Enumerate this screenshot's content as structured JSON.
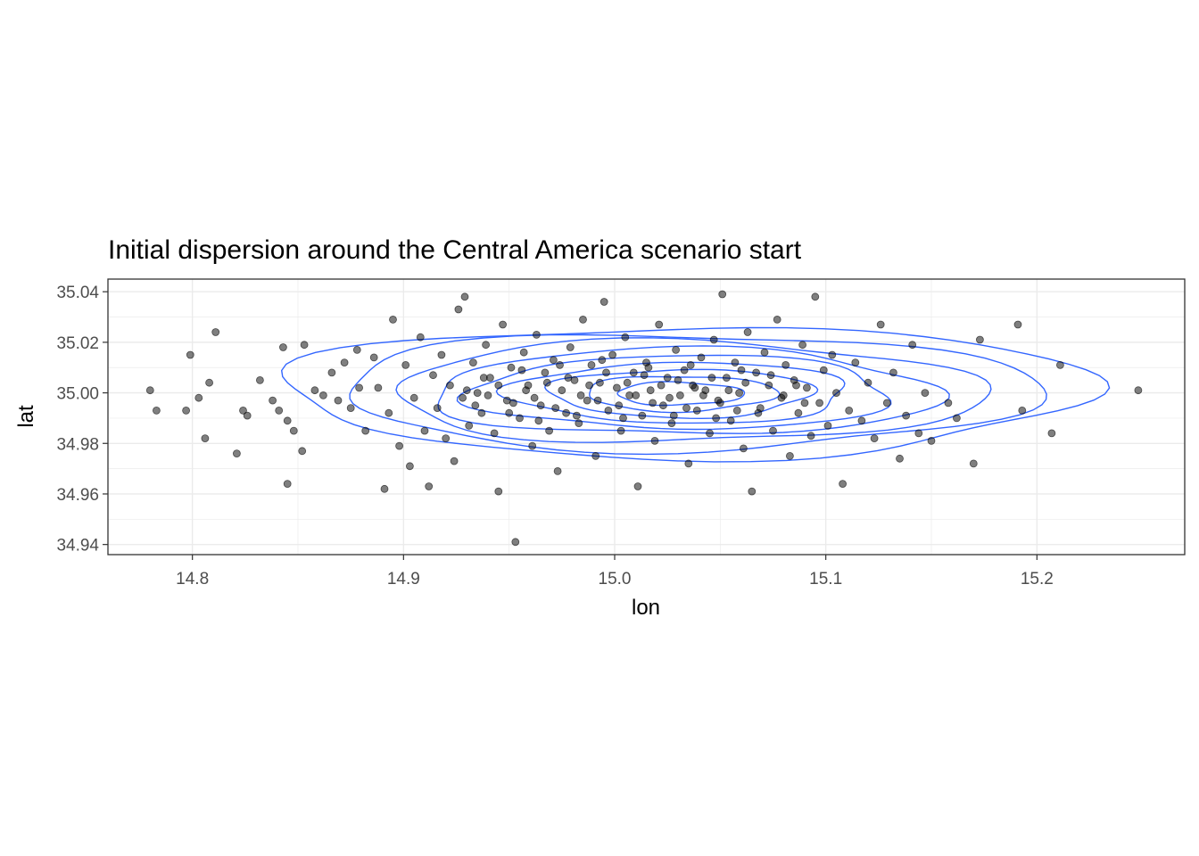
{
  "chart_data": {
    "type": "scatter",
    "title": "Initial dispersion around the Central America scenario start",
    "xlabel": "lon",
    "ylabel": "lat",
    "xlim": [
      14.76,
      15.27
    ],
    "ylim": [
      34.936,
      35.045
    ],
    "x_ticks": [
      14.8,
      14.9,
      15.0,
      15.1,
      15.2
    ],
    "x_tick_labels": [
      "14.8",
      "14.9",
      "15.0",
      "15.1",
      "15.2"
    ],
    "y_ticks": [
      34.94,
      34.96,
      34.98,
      35.0,
      35.02,
      35.04
    ],
    "y_tick_labels": [
      "34.94",
      "34.96",
      "34.98",
      "35.00",
      "35.02",
      "35.04"
    ],
    "grid": true,
    "colors": {
      "points": "#000000",
      "contours": "#3366ff",
      "grid": "#ebebeb",
      "panel_border": "#333333"
    },
    "density_contours": {
      "center": [
        15.0,
        35.0
      ],
      "levels": [
        {
          "rx": 0.19,
          "ry": 0.026
        },
        {
          "rx": 0.165,
          "ry": 0.023
        },
        {
          "rx": 0.14,
          "ry": 0.02
        },
        {
          "rx": 0.12,
          "ry": 0.017
        },
        {
          "rx": 0.1,
          "ry": 0.0145
        },
        {
          "rx": 0.08,
          "ry": 0.012
        },
        {
          "rx": 0.062,
          "ry": 0.0095
        },
        {
          "rx": 0.045,
          "ry": 0.007
        },
        {
          "rx": 0.03,
          "ry": 0.0045
        }
      ]
    },
    "points": [
      [
        14.78,
        35.001
      ],
      [
        14.783,
        34.993
      ],
      [
        14.797,
        34.993
      ],
      [
        14.799,
        35.015
      ],
      [
        14.803,
        34.998
      ],
      [
        14.806,
        34.982
      ],
      [
        14.808,
        35.004
      ],
      [
        14.811,
        35.024
      ],
      [
        14.821,
        34.976
      ],
      [
        14.824,
        34.993
      ],
      [
        14.826,
        34.991
      ],
      [
        14.832,
        35.005
      ],
      [
        14.838,
        34.997
      ],
      [
        14.841,
        34.993
      ],
      [
        14.843,
        35.018
      ],
      [
        14.845,
        34.964
      ],
      [
        14.845,
        34.989
      ],
      [
        14.848,
        34.985
      ],
      [
        14.853,
        35.019
      ],
      [
        14.852,
        34.977
      ],
      [
        14.858,
        35.001
      ],
      [
        14.862,
        34.999
      ],
      [
        14.866,
        35.008
      ],
      [
        14.869,
        34.997
      ],
      [
        14.872,
        35.012
      ],
      [
        14.875,
        34.994
      ],
      [
        14.878,
        35.017
      ],
      [
        14.879,
        35.002
      ],
      [
        14.882,
        34.985
      ],
      [
        14.886,
        35.014
      ],
      [
        14.888,
        35.002
      ],
      [
        14.891,
        34.962
      ],
      [
        14.893,
        34.992
      ],
      [
        14.895,
        35.029
      ],
      [
        14.898,
        34.979
      ],
      [
        14.901,
        35.011
      ],
      [
        14.903,
        34.971
      ],
      [
        14.905,
        34.998
      ],
      [
        14.908,
        35.022
      ],
      [
        14.91,
        34.985
      ],
      [
        14.912,
        34.963
      ],
      [
        14.914,
        35.007
      ],
      [
        14.916,
        34.994
      ],
      [
        14.918,
        35.015
      ],
      [
        14.92,
        34.982
      ],
      [
        14.922,
        35.003
      ],
      [
        14.924,
        34.973
      ],
      [
        14.926,
        35.033
      ],
      [
        14.928,
        34.998
      ],
      [
        14.929,
        35.038
      ],
      [
        14.931,
        34.987
      ],
      [
        14.933,
        35.012
      ],
      [
        14.935,
        35.0
      ],
      [
        14.937,
        34.992
      ],
      [
        14.939,
        35.019
      ],
      [
        14.941,
        35.006
      ],
      [
        14.943,
        34.984
      ],
      [
        14.945,
        34.961
      ],
      [
        14.947,
        35.027
      ],
      [
        14.949,
        34.997
      ],
      [
        14.951,
        35.01
      ],
      [
        14.953,
        34.941
      ],
      [
        14.955,
        34.99
      ],
      [
        14.957,
        35.016
      ],
      [
        14.959,
        35.003
      ],
      [
        14.961,
        34.979
      ],
      [
        14.963,
        35.023
      ],
      [
        14.965,
        34.995
      ],
      [
        14.967,
        35.008
      ],
      [
        14.969,
        34.985
      ],
      [
        14.971,
        35.013
      ],
      [
        14.973,
        34.969
      ],
      [
        14.975,
        35.001
      ],
      [
        14.977,
        34.992
      ],
      [
        14.979,
        35.018
      ],
      [
        14.981,
        35.005
      ],
      [
        14.983,
        34.988
      ],
      [
        14.985,
        35.029
      ],
      [
        14.987,
        34.997
      ],
      [
        14.989,
        35.011
      ],
      [
        14.991,
        34.975
      ],
      [
        14.993,
        35.004
      ],
      [
        14.995,
        35.036
      ],
      [
        14.997,
        34.993
      ],
      [
        14.999,
        35.015
      ],
      [
        15.001,
        35.002
      ],
      [
        15.003,
        34.985
      ],
      [
        15.005,
        35.022
      ],
      [
        15.007,
        34.999
      ],
      [
        15.009,
        35.008
      ],
      [
        15.011,
        34.963
      ],
      [
        15.013,
        34.991
      ],
      [
        15.015,
        35.012
      ],
      [
        15.017,
        35.001
      ],
      [
        15.019,
        34.981
      ],
      [
        15.021,
        35.027
      ],
      [
        15.023,
        34.995
      ],
      [
        15.025,
        35.006
      ],
      [
        15.027,
        34.988
      ],
      [
        15.029,
        35.017
      ],
      [
        15.031,
        34.999
      ],
      [
        15.033,
        35.009
      ],
      [
        15.035,
        34.972
      ],
      [
        15.037,
        35.003
      ],
      [
        15.039,
        34.993
      ],
      [
        15.041,
        35.014
      ],
      [
        15.043,
        35.001
      ],
      [
        15.045,
        34.984
      ],
      [
        15.047,
        35.021
      ],
      [
        15.049,
        34.997
      ],
      [
        15.051,
        35.039
      ],
      [
        15.053,
        35.006
      ],
      [
        15.055,
        34.989
      ],
      [
        15.057,
        35.012
      ],
      [
        15.059,
        35.0
      ],
      [
        15.061,
        34.978
      ],
      [
        15.063,
        35.024
      ],
      [
        15.065,
        34.961
      ],
      [
        15.067,
        35.008
      ],
      [
        15.069,
        34.994
      ],
      [
        15.071,
        35.016
      ],
      [
        15.073,
        35.003
      ],
      [
        15.075,
        34.985
      ],
      [
        15.077,
        35.029
      ],
      [
        15.079,
        34.998
      ],
      [
        15.081,
        35.011
      ],
      [
        15.083,
        34.975
      ],
      [
        15.085,
        35.005
      ],
      [
        15.087,
        34.992
      ],
      [
        15.089,
        35.019
      ],
      [
        15.091,
        35.002
      ],
      [
        15.093,
        34.983
      ],
      [
        15.095,
        35.038
      ],
      [
        15.097,
        34.996
      ],
      [
        15.099,
        35.009
      ],
      [
        15.101,
        34.987
      ],
      [
        15.103,
        35.015
      ],
      [
        15.105,
        35.0
      ],
      [
        15.108,
        34.964
      ],
      [
        15.111,
        34.993
      ],
      [
        15.114,
        35.012
      ],
      [
        15.117,
        34.989
      ],
      [
        15.12,
        35.004
      ],
      [
        15.123,
        34.982
      ],
      [
        15.126,
        35.027
      ],
      [
        15.129,
        34.996
      ],
      [
        15.132,
        35.008
      ],
      [
        15.135,
        34.974
      ],
      [
        15.138,
        34.991
      ],
      [
        15.141,
        35.019
      ],
      [
        15.144,
        34.984
      ],
      [
        15.147,
        35.0
      ],
      [
        15.15,
        34.981
      ],
      [
        15.158,
        34.996
      ],
      [
        15.162,
        34.99
      ],
      [
        15.17,
        34.972
      ],
      [
        15.173,
        35.021
      ],
      [
        15.191,
        35.027
      ],
      [
        15.193,
        34.993
      ],
      [
        15.207,
        34.984
      ],
      [
        15.211,
        35.011
      ],
      [
        15.248,
        35.001
      ],
      [
        14.94,
        34.999
      ],
      [
        14.945,
        35.003
      ],
      [
        14.952,
        34.996
      ],
      [
        14.958,
        35.001
      ],
      [
        14.962,
        34.998
      ],
      [
        14.968,
        35.004
      ],
      [
        14.972,
        34.994
      ],
      [
        14.978,
        35.006
      ],
      [
        14.984,
        34.999
      ],
      [
        14.988,
        35.003
      ],
      [
        14.992,
        34.997
      ],
      [
        14.996,
        35.008
      ],
      [
        15.002,
        34.995
      ],
      [
        15.006,
        35.004
      ],
      [
        15.01,
        34.999
      ],
      [
        15.014,
        35.007
      ],
      [
        15.018,
        34.996
      ],
      [
        15.022,
        35.003
      ],
      [
        15.026,
        34.998
      ],
      [
        15.03,
        35.005
      ],
      [
        15.034,
        34.994
      ],
      [
        15.038,
        35.002
      ],
      [
        15.042,
        34.999
      ],
      [
        15.046,
        35.006
      ],
      [
        15.05,
        34.996
      ],
      [
        15.054,
        35.001
      ],
      [
        15.058,
        34.993
      ],
      [
        15.062,
        35.004
      ],
      [
        14.95,
        34.992
      ],
      [
        14.956,
        35.009
      ],
      [
        14.964,
        34.989
      ],
      [
        14.974,
        35.011
      ],
      [
        14.982,
        34.991
      ],
      [
        14.994,
        35.013
      ],
      [
        15.004,
        34.99
      ],
      [
        15.016,
        35.01
      ],
      [
        15.028,
        34.991
      ],
      [
        15.036,
        35.011
      ],
      [
        15.048,
        34.99
      ],
      [
        15.06,
        35.009
      ],
      [
        15.068,
        34.992
      ],
      [
        15.074,
        35.007
      ],
      [
        14.93,
        35.001
      ],
      [
        14.934,
        34.995
      ],
      [
        14.938,
        35.006
      ],
      [
        15.08,
        34.999
      ],
      [
        15.086,
        35.003
      ],
      [
        15.09,
        34.996
      ]
    ]
  }
}
